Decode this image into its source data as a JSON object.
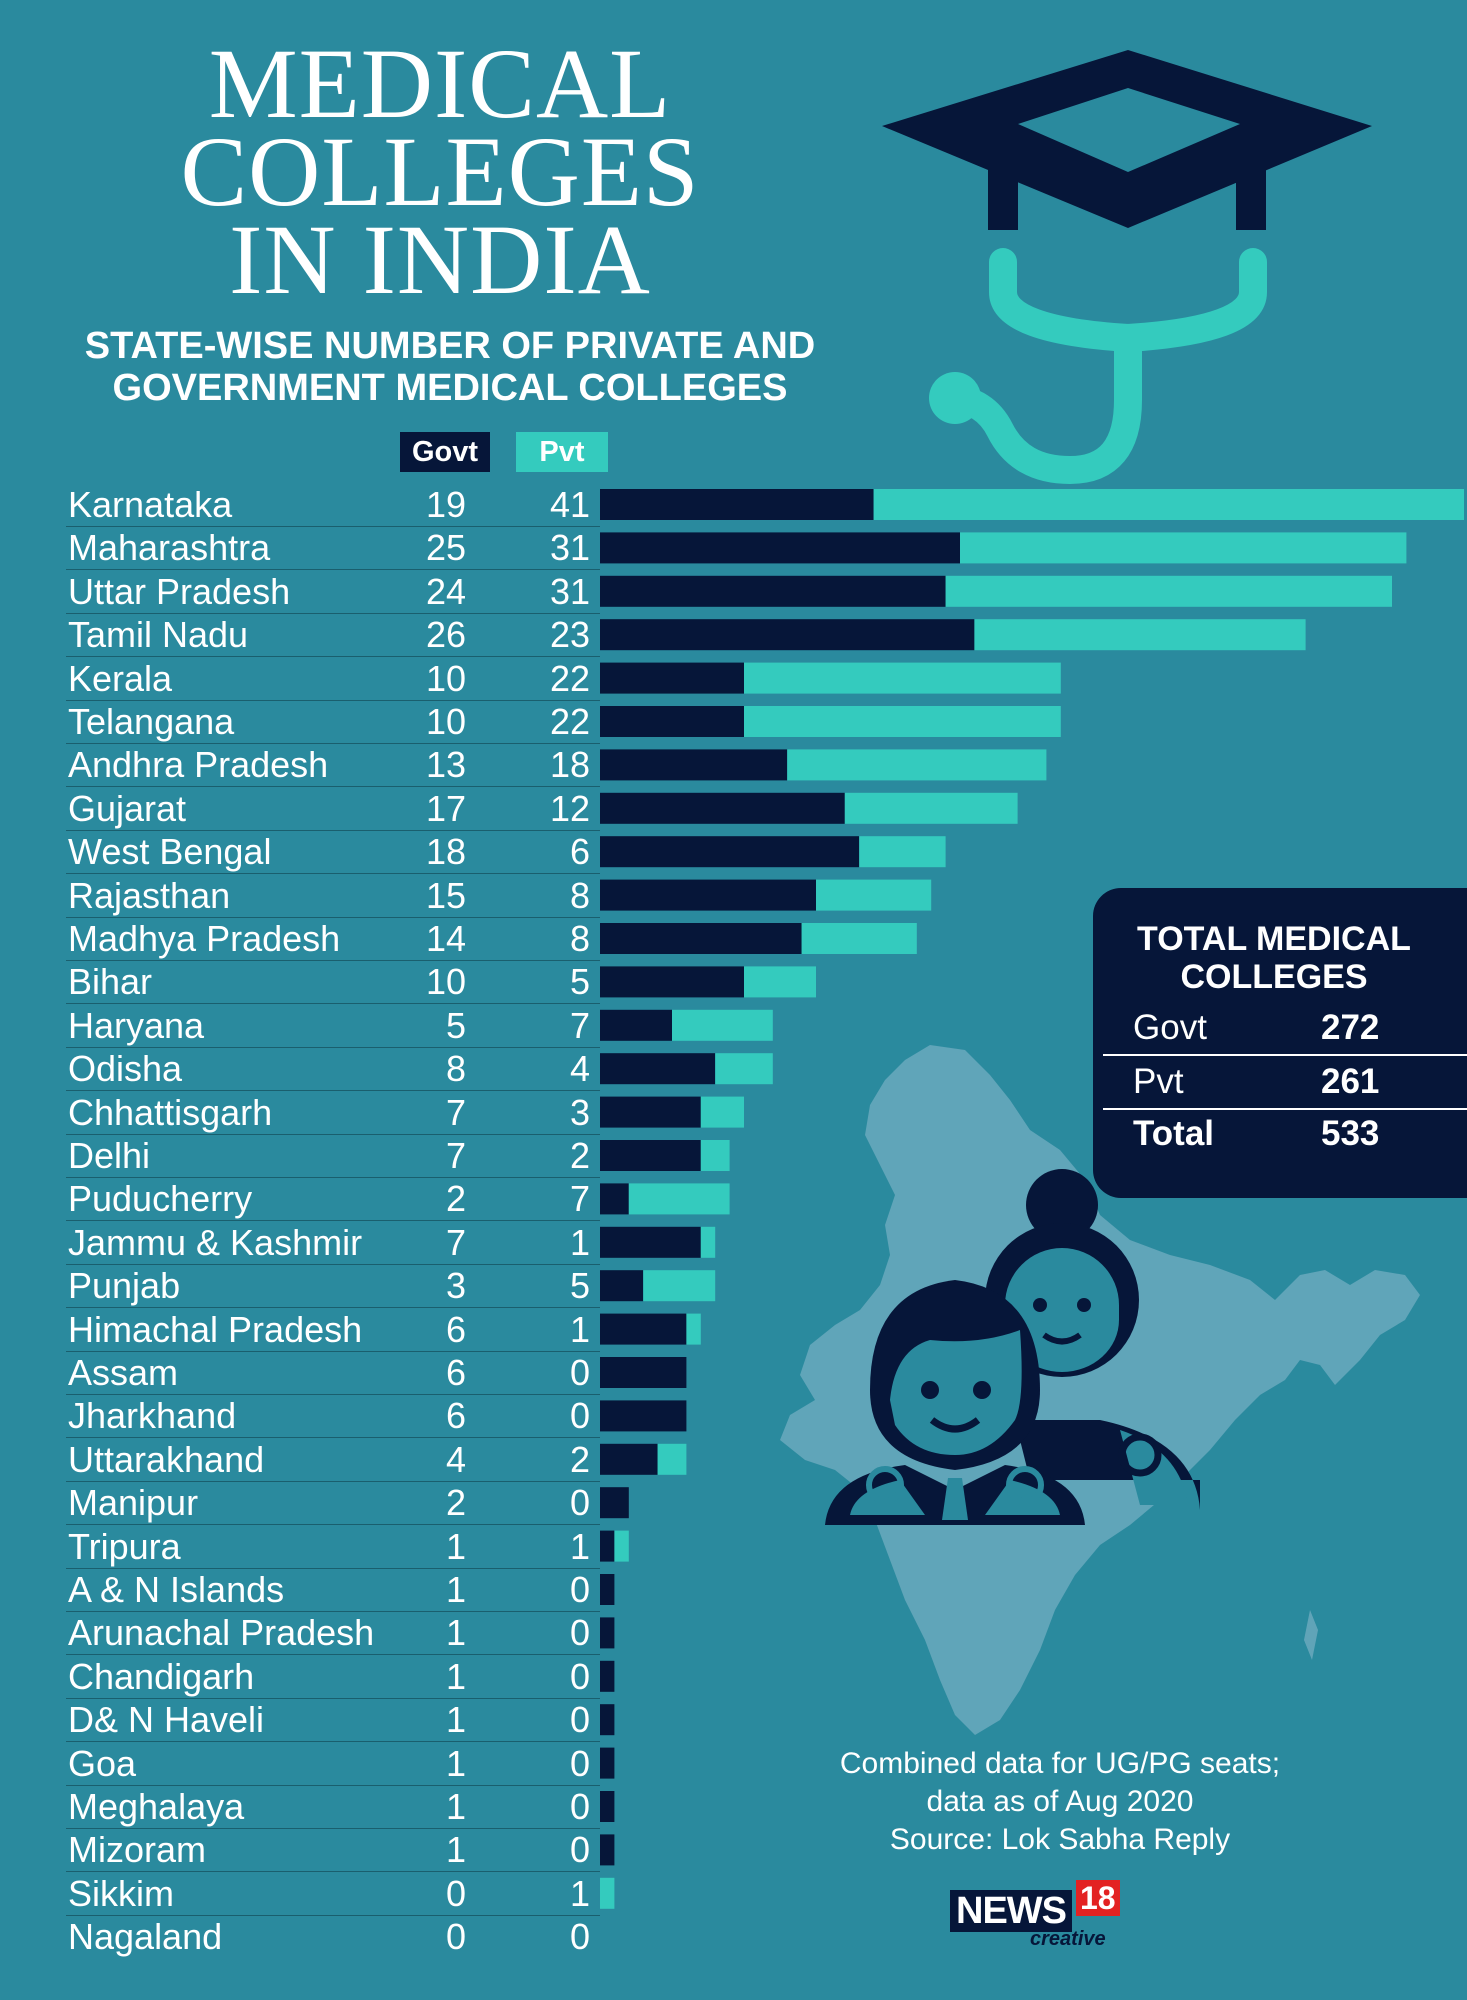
{
  "title_lines": [
    "MEDICAL",
    "COLLEGES",
    "IN INDIA"
  ],
  "subtitle_lines": [
    "STATE-WISE NUMBER OF PRIVATE AND",
    "GOVERNMENT MEDICAL COLLEGES"
  ],
  "legend": {
    "govt": "Govt",
    "pvt": "Pvt"
  },
  "colors": {
    "background": "#2a8a9e",
    "govt": "#061639",
    "pvt": "#34cbbe",
    "map": "#6aa9bd",
    "accent": "#e32222"
  },
  "chart_data": {
    "type": "bar",
    "orientation": "horizontal",
    "stacked": true,
    "categories": [
      "Karnataka",
      "Maharashtra",
      "Uttar Pradesh",
      "Tamil Nadu",
      "Kerala",
      "Telangana",
      "Andhra Pradesh",
      "Gujarat",
      "West Bengal",
      "Rajasthan",
      "Madhya Pradesh",
      "Bihar",
      "Haryana",
      "Odisha",
      "Chhattisgarh",
      "Delhi",
      "Puducherry",
      "Jammu & Kashmir",
      "Punjab",
      "Himachal Pradesh",
      "Assam",
      "Jharkhand",
      "Uttarakhand",
      "Manipur",
      "Tripura",
      "A & N Islands",
      "Arunachal Pradesh",
      "Chandigarh",
      "D& N Haveli",
      "Goa",
      "Meghalaya",
      "Mizoram",
      "Sikkim",
      "Nagaland"
    ],
    "series": [
      {
        "name": "Govt",
        "color": "#061639",
        "values": [
          19,
          25,
          24,
          26,
          10,
          10,
          13,
          17,
          18,
          15,
          14,
          10,
          5,
          8,
          7,
          7,
          2,
          7,
          3,
          6,
          6,
          6,
          4,
          2,
          1,
          1,
          1,
          1,
          1,
          1,
          1,
          1,
          0,
          0
        ]
      },
      {
        "name": "Pvt",
        "color": "#34cbbe",
        "values": [
          41,
          31,
          31,
          23,
          22,
          22,
          18,
          12,
          6,
          8,
          8,
          5,
          7,
          4,
          3,
          2,
          7,
          1,
          5,
          1,
          0,
          0,
          2,
          0,
          1,
          0,
          0,
          0,
          0,
          0,
          0,
          0,
          1,
          0
        ]
      }
    ],
    "xlim": [
      0,
      60
    ]
  },
  "totals": {
    "title_lines": [
      "TOTAL MEDICAL",
      "COLLEGES"
    ],
    "rows": [
      {
        "label": "Govt",
        "value": "272"
      },
      {
        "label": "Pvt",
        "value": "261"
      },
      {
        "label": "Total",
        "value": "533"
      }
    ]
  },
  "note_lines": [
    "Combined data for UG/PG seats;",
    "data as of Aug 2020",
    "Source: Lok Sabha Reply"
  ],
  "logo": {
    "name": "NEWS",
    "number": "18",
    "tagline": "creative"
  },
  "icons": [
    "graduation-cap-icon",
    "stethoscope-icon",
    "india-map-icon",
    "doctors-icon"
  ]
}
